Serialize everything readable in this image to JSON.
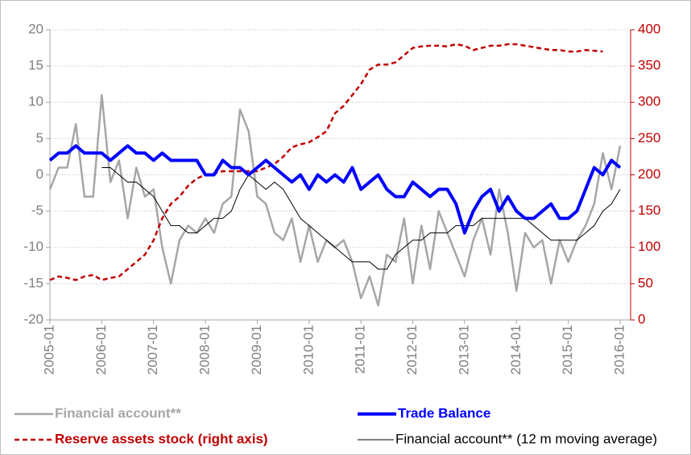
{
  "chart_data": {
    "type": "line",
    "categories": [
      "2005-01",
      null,
      null,
      null,
      null,
      null,
      "2006-01",
      null,
      null,
      null,
      null,
      null,
      "2007-01",
      null,
      null,
      null,
      null,
      null,
      "2008-01",
      null,
      null,
      null,
      null,
      null,
      "2009-01",
      null,
      null,
      null,
      null,
      null,
      "2010-01",
      null,
      null,
      null,
      null,
      null,
      "2011-01",
      null,
      null,
      null,
      null,
      null,
      "2012-01",
      null,
      null,
      null,
      null,
      null,
      "2013-01",
      null,
      null,
      null,
      null,
      null,
      "2014-01",
      null,
      null,
      null,
      null,
      null,
      "2015-01",
      null,
      null,
      null,
      null,
      null,
      "2016-01"
    ],
    "series": [
      {
        "name": "Financial account**",
        "color": "#a6a6a6",
        "line_style": "solid",
        "axis": "y",
        "values": [
          -2,
          1,
          1,
          7,
          -3,
          -3,
          11,
          -1,
          2,
          -6,
          1,
          -3,
          -2,
          -10,
          -15,
          -9,
          -7,
          -8,
          -6,
          -8,
          -4,
          -3,
          9,
          6,
          -3,
          -4,
          -8,
          -9,
          -6,
          -12,
          -7,
          -12,
          -9,
          -10,
          -9,
          -12,
          -17,
          -14,
          -18,
          -11,
          -12,
          -6,
          -15,
          -7,
          -13,
          -5,
          -8,
          -11,
          -14,
          -9,
          -6,
          -11,
          -2,
          -8,
          -16,
          -8,
          -10,
          -9,
          -15,
          -9,
          -12,
          -9,
          -7,
          -4,
          3,
          -2,
          4
        ]
      },
      {
        "name": "Financial account** (12 m moving average)",
        "color": "#000000",
        "line_style": "solid",
        "axis": "y",
        "values": [
          null,
          null,
          null,
          null,
          null,
          null,
          1,
          1,
          0,
          -1,
          -1,
          -2,
          -3,
          -5,
          -7,
          -7,
          -8,
          -8,
          -7,
          -6,
          -6,
          -5,
          -2,
          0,
          -1,
          -2,
          -1,
          -2,
          -4,
          -6,
          -7,
          -8,
          -9,
          -10,
          -11,
          -12,
          -12,
          -12,
          -13,
          -13,
          -11,
          -10,
          -9,
          -9,
          -8,
          -8,
          -8,
          -7,
          -7,
          -7,
          -6,
          -6,
          -6,
          -6,
          -6,
          -6,
          -7,
          -8,
          -9,
          -9,
          -9,
          -9,
          -8,
          -7,
          -5,
          -4,
          -2
        ]
      },
      {
        "name": "Reserve assets stock (right axis)",
        "color": "#c00000",
        "line_style": "dashed",
        "axis": "y2",
        "values": [
          55,
          60,
          58,
          55,
          60,
          62,
          55,
          58,
          60,
          70,
          80,
          90,
          110,
          140,
          160,
          170,
          185,
          195,
          200,
          202,
          205,
          205,
          205,
          205,
          205,
          210,
          215,
          225,
          238,
          242,
          245,
          252,
          260,
          285,
          295,
          310,
          325,
          345,
          352,
          352,
          355,
          365,
          375,
          377,
          378,
          378,
          377,
          380,
          378,
          372,
          375,
          378,
          378,
          380,
          380,
          378,
          376,
          374,
          372,
          372,
          370,
          370,
          372,
          371,
          370,
          null,
          null
        ]
      },
      {
        "name": "Trade Balance",
        "color": "#0000ff",
        "line_style": "solid",
        "axis": "y",
        "values": [
          2,
          3,
          3,
          4,
          3,
          3,
          3,
          2,
          3,
          4,
          3,
          3,
          2,
          3,
          2,
          2,
          2,
          2,
          0,
          0,
          2,
          1,
          1,
          0,
          1,
          2,
          1,
          0,
          -1,
          0,
          -2,
          0,
          -1,
          0,
          -1,
          1,
          -2,
          -1,
          0,
          -2,
          -3,
          -3,
          -1,
          -2,
          -3,
          -2,
          -2,
          -4,
          -8,
          -5,
          -3,
          -2,
          -5,
          -3,
          -5,
          -6,
          -6,
          -5,
          -4,
          -6,
          -6,
          -5,
          -2,
          1,
          0,
          2,
          1
        ]
      }
    ],
    "ylim": [
      -20,
      20
    ],
    "yticks": [
      -20,
      -15,
      -10,
      -5,
      0,
      5,
      10,
      15,
      20
    ],
    "y2lim": [
      0,
      400
    ],
    "y2ticks": [
      0,
      50,
      100,
      150,
      200,
      250,
      300,
      350,
      400
    ],
    "y2color": "#c00000",
    "grid": true,
    "legend": "bottom"
  }
}
